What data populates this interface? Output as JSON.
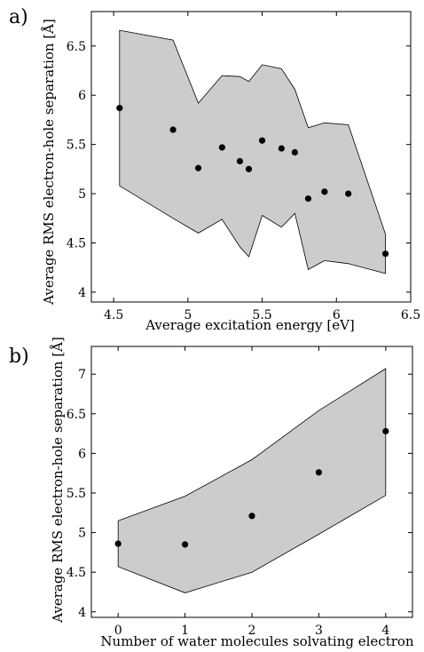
{
  "chart_data": [
    {
      "type": "scatter",
      "panel_label": "a)",
      "xlabel": "Average excitation energy [eV]",
      "ylabel": "Average RMS electron-hole separation [Å]",
      "xlim": [
        4.35,
        6.5
      ],
      "ylim": [
        3.9,
        6.85
      ],
      "xticks": [
        4.5,
        5,
        5.5,
        6,
        6.5
      ],
      "xtick_labels": [
        "4.5",
        "5",
        "5.5",
        "6",
        "6.5"
      ],
      "yticks": [
        4,
        4.5,
        5,
        5.5,
        6,
        6.5
      ],
      "ytick_labels": [
        "4",
        "4.5",
        "5",
        "5.5",
        "6",
        "6.5"
      ],
      "grid": false,
      "band_color": "#cccccc",
      "point_color": "#000000",
      "points": [
        {
          "x": 4.54,
          "y": 5.87
        },
        {
          "x": 4.9,
          "y": 5.65
        },
        {
          "x": 5.07,
          "y": 5.26
        },
        {
          "x": 5.23,
          "y": 5.47
        },
        {
          "x": 5.35,
          "y": 5.33
        },
        {
          "x": 5.41,
          "y": 5.25
        },
        {
          "x": 5.5,
          "y": 5.54
        },
        {
          "x": 5.63,
          "y": 5.46
        },
        {
          "x": 5.72,
          "y": 5.42
        },
        {
          "x": 5.81,
          "y": 4.95
        },
        {
          "x": 5.92,
          "y": 5.02
        },
        {
          "x": 6.08,
          "y": 5.0
        },
        {
          "x": 6.33,
          "y": 4.39
        }
      ],
      "band_upper": [
        {
          "x": 4.54,
          "y": 6.66
        },
        {
          "x": 4.9,
          "y": 6.56
        },
        {
          "x": 5.07,
          "y": 5.92
        },
        {
          "x": 5.23,
          "y": 6.2
        },
        {
          "x": 5.35,
          "y": 6.19
        },
        {
          "x": 5.41,
          "y": 6.14
        },
        {
          "x": 5.5,
          "y": 6.31
        },
        {
          "x": 5.63,
          "y": 6.27
        },
        {
          "x": 5.72,
          "y": 6.06
        },
        {
          "x": 5.81,
          "y": 5.67
        },
        {
          "x": 5.92,
          "y": 5.72
        },
        {
          "x": 6.08,
          "y": 5.7
        },
        {
          "x": 6.33,
          "y": 4.59
        }
      ],
      "band_lower": [
        {
          "x": 4.54,
          "y": 5.08
        },
        {
          "x": 4.9,
          "y": 4.75
        },
        {
          "x": 5.07,
          "y": 4.6
        },
        {
          "x": 5.23,
          "y": 4.74
        },
        {
          "x": 5.35,
          "y": 4.46
        },
        {
          "x": 5.41,
          "y": 4.36
        },
        {
          "x": 5.5,
          "y": 4.78
        },
        {
          "x": 5.63,
          "y": 4.66
        },
        {
          "x": 5.72,
          "y": 4.8
        },
        {
          "x": 5.81,
          "y": 4.23
        },
        {
          "x": 5.92,
          "y": 4.32
        },
        {
          "x": 6.08,
          "y": 4.29
        },
        {
          "x": 6.33,
          "y": 4.19
        }
      ]
    },
    {
      "type": "scatter",
      "panel_label": "b)",
      "xlabel": "Number of water molecules solvating electron",
      "ylabel": "Average RMS electron-hole separation [Å]",
      "xlim": [
        -0.4,
        4.4
      ],
      "ylim": [
        3.93,
        7.35
      ],
      "xticks": [
        0,
        1,
        2,
        3,
        4
      ],
      "xtick_labels": [
        "0",
        "1",
        "2",
        "3",
        "4"
      ],
      "yticks": [
        4,
        4.5,
        5,
        5.5,
        6,
        6.5,
        7
      ],
      "ytick_labels": [
        "4",
        "4.5",
        "5",
        "5.5",
        "6",
        "6.5",
        "7"
      ],
      "grid": false,
      "band_color": "#cccccc",
      "point_color": "#000000",
      "points": [
        {
          "x": 0,
          "y": 4.86
        },
        {
          "x": 1,
          "y": 4.85
        },
        {
          "x": 2,
          "y": 5.21
        },
        {
          "x": 3,
          "y": 5.76
        },
        {
          "x": 4,
          "y": 6.28
        }
      ],
      "band_upper": [
        {
          "x": 0,
          "y": 5.15
        },
        {
          "x": 1,
          "y": 5.46
        },
        {
          "x": 2,
          "y": 5.92
        },
        {
          "x": 3,
          "y": 6.54
        },
        {
          "x": 4,
          "y": 7.07
        }
      ],
      "band_lower": [
        {
          "x": 0,
          "y": 4.57
        },
        {
          "x": 1,
          "y": 4.24
        },
        {
          "x": 2,
          "y": 4.5
        },
        {
          "x": 3,
          "y": 4.98
        },
        {
          "x": 4,
          "y": 5.47
        }
      ]
    }
  ]
}
